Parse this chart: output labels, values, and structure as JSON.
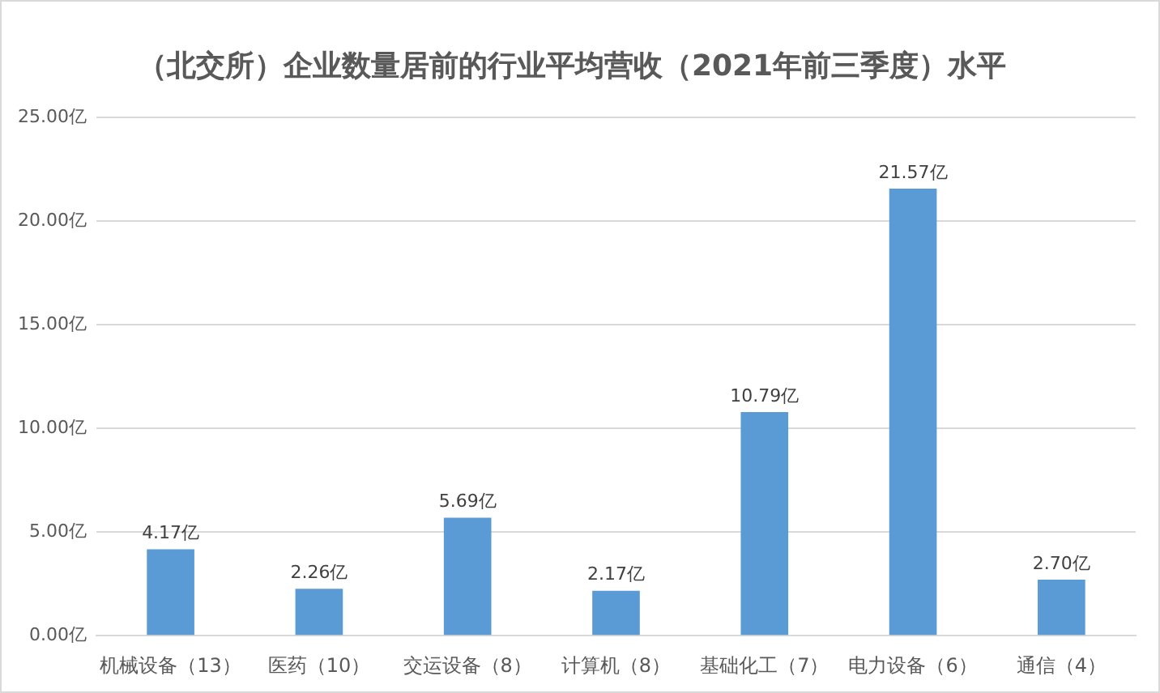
{
  "chart_data": {
    "type": "bar",
    "title": "（北交所）企业数量居前的行业平均营收（2021年前三季度）水平",
    "categories": [
      "机械设备（13）",
      "医药（10）",
      "交运设备（8）",
      "计算机（8）",
      "基础化工（7）",
      "电力设备（6）",
      "通信（4）"
    ],
    "values": [
      4.17,
      2.26,
      5.69,
      2.17,
      10.79,
      21.57,
      2.7
    ],
    "value_labels": [
      "4.17亿",
      "2.26亿",
      "5.69亿",
      "2.17亿",
      "10.79亿",
      "21.57亿",
      "2.70亿"
    ],
    "color": "#5b9bd5",
    "ylim": [
      0,
      25
    ],
    "yticks": [
      {
        "value": 0,
        "label": "0.00亿"
      },
      {
        "value": 5,
        "label": "5.00亿"
      },
      {
        "value": 10,
        "label": "10.00亿"
      },
      {
        "value": 15,
        "label": "15.00亿"
      },
      {
        "value": 20,
        "label": "20.00亿"
      },
      {
        "value": 25,
        "label": "25.00亿"
      }
    ],
    "grid": "y"
  }
}
